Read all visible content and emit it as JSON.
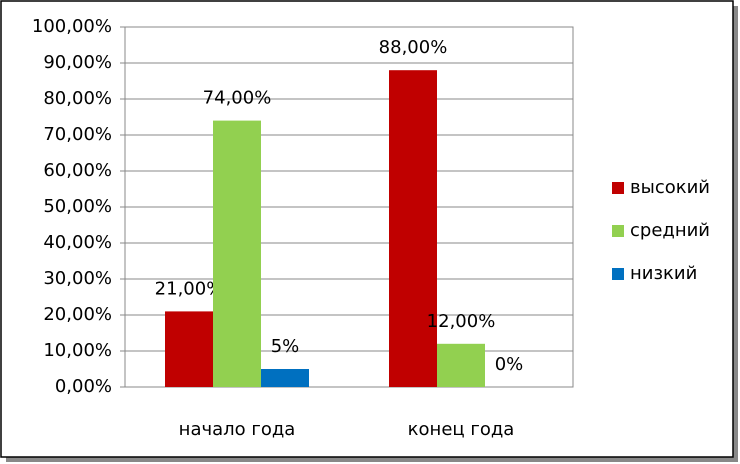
{
  "chart_data": {
    "type": "bar",
    "categories": [
      "начало года",
      "конец года"
    ],
    "series": [
      {
        "name": "высокий",
        "color": "#c00000",
        "values": [
          21,
          88
        ],
        "value_labels": [
          "21,00%",
          "88,00%"
        ]
      },
      {
        "name": "средний",
        "color": "#92d050",
        "values": [
          74,
          12
        ],
        "value_labels": [
          "74,00%",
          "12,00%"
        ]
      },
      {
        "name": "низкий",
        "color": "#0070c0",
        "values": [
          5,
          0
        ],
        "value_labels": [
          "5%",
          "0%"
        ]
      }
    ],
    "ylim": [
      0,
      100
    ],
    "yticks": [
      {
        "value": 0,
        "label": "0,00%"
      },
      {
        "value": 10,
        "label": "10,00%"
      },
      {
        "value": 20,
        "label": "20,00%"
      },
      {
        "value": 30,
        "label": "30,00%"
      },
      {
        "value": 40,
        "label": "40,00%"
      },
      {
        "value": 50,
        "label": "50,00%"
      },
      {
        "value": 60,
        "label": "60,00%"
      },
      {
        "value": 70,
        "label": "70,00%"
      },
      {
        "value": 80,
        "label": "80,00%"
      },
      {
        "value": 90,
        "label": "90,00%"
      },
      {
        "value": 100,
        "label": "100,00%"
      }
    ],
    "grid": true,
    "legend": "right"
  }
}
